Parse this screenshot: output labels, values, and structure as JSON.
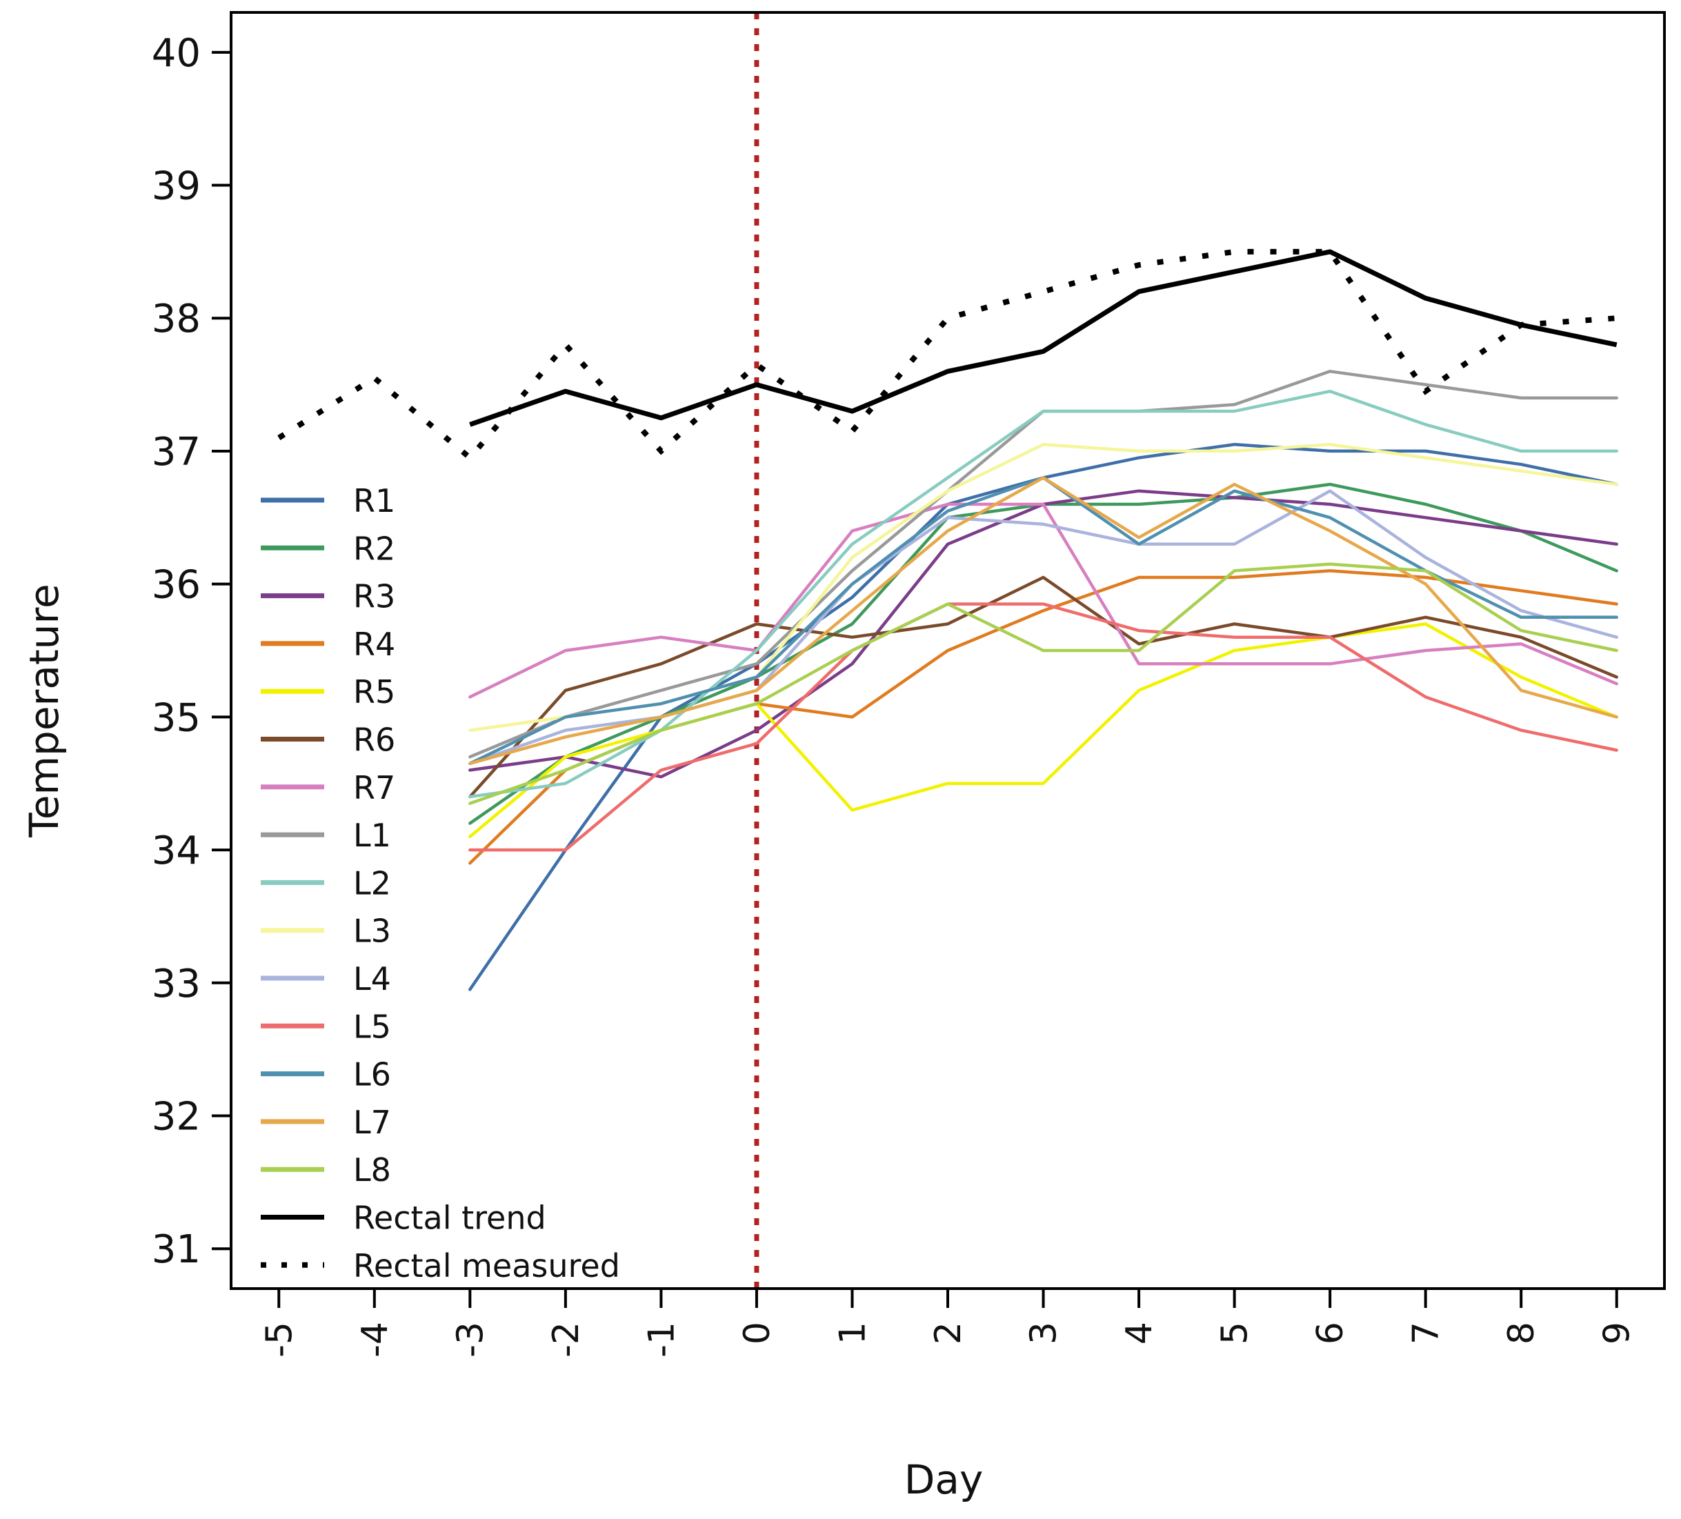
{
  "chart_data": {
    "type": "line",
    "title": "",
    "xlabel": "Day",
    "ylabel": "Temperature",
    "xlim": [
      -5.5,
      9.5
    ],
    "ylim": [
      30.7,
      40.3
    ],
    "x_ticks": [
      -5,
      -4,
      -3,
      -2,
      -1,
      0,
      1,
      2,
      3,
      4,
      5,
      6,
      7,
      8,
      9
    ],
    "x_tick_labels": [
      "-5",
      "-4",
      "-3",
      "-2",
      "-1",
      "0",
      "1",
      "2",
      "3",
      "4",
      "5",
      "6",
      "7",
      "8",
      "9"
    ],
    "y_ticks": [
      31,
      32,
      33,
      34,
      35,
      36,
      37,
      38,
      39,
      40
    ],
    "y_tick_labels": [
      "31",
      "32",
      "33",
      "34",
      "35",
      "36",
      "37",
      "38",
      "39",
      "40"
    ],
    "reference_line": {
      "x": 0,
      "color": "#b22222",
      "style": "dotted"
    },
    "legend_position": "left",
    "x": [
      -3,
      -2,
      -1,
      0,
      1,
      2,
      3,
      4,
      5,
      6,
      7,
      8,
      9
    ],
    "series": [
      {
        "name": "R1",
        "color": "#3f6fa8",
        "values": [
          32.95,
          34.0,
          35.0,
          35.4,
          35.9,
          36.6,
          36.8,
          36.95,
          37.05,
          37.0,
          37.0,
          36.9,
          36.75
        ]
      },
      {
        "name": "R2",
        "color": "#3e9a5c",
        "values": [
          34.2,
          34.7,
          35.0,
          35.3,
          35.7,
          36.5,
          36.6,
          36.6,
          36.65,
          36.75,
          36.6,
          36.4,
          36.1
        ]
      },
      {
        "name": "R3",
        "color": "#7b3c8a",
        "values": [
          34.6,
          34.7,
          34.55,
          34.9,
          35.4,
          36.3,
          36.6,
          36.7,
          36.65,
          36.6,
          36.5,
          36.4,
          36.3
        ]
      },
      {
        "name": "R4",
        "color": "#e07b20",
        "values": [
          33.9,
          34.6,
          34.9,
          35.1,
          35.0,
          35.5,
          35.8,
          36.05,
          36.05,
          36.1,
          36.05,
          35.95,
          35.85
        ]
      },
      {
        "name": "R5",
        "color": "#f2f200",
        "values": [
          34.1,
          34.7,
          34.9,
          35.1,
          34.3,
          34.5,
          34.5,
          35.2,
          35.5,
          35.6,
          35.7,
          35.3,
          35.0
        ]
      },
      {
        "name": "R6",
        "color": "#7a4a2a",
        "values": [
          34.4,
          35.2,
          35.4,
          35.7,
          35.6,
          35.7,
          36.05,
          35.55,
          35.7,
          35.6,
          35.75,
          35.6,
          35.3
        ]
      },
      {
        "name": "R7",
        "color": "#d77fbf",
        "values": [
          35.15,
          35.5,
          35.6,
          35.5,
          36.4,
          36.6,
          36.6,
          35.4,
          35.4,
          35.4,
          35.5,
          35.55,
          35.25
        ]
      },
      {
        "name": "L1",
        "color": "#999999",
        "values": [
          34.7,
          35.0,
          35.2,
          35.4,
          36.1,
          36.7,
          37.3,
          37.3,
          37.35,
          37.6,
          37.5,
          37.4,
          37.4
        ]
      },
      {
        "name": "L2",
        "color": "#88ccc0",
        "values": [
          34.4,
          34.5,
          34.9,
          35.5,
          36.3,
          36.8,
          37.3,
          37.3,
          37.3,
          37.45,
          37.2,
          37.0,
          37.0
        ]
      },
      {
        "name": "L3",
        "color": "#f5f59a",
        "values": [
          34.9,
          35.0,
          35.1,
          35.3,
          36.2,
          36.7,
          37.05,
          37.0,
          37.0,
          37.05,
          36.95,
          36.85,
          36.75
        ]
      },
      {
        "name": "L4",
        "color": "#a9b3dd",
        "values": [
          34.65,
          34.9,
          35.0,
          35.2,
          36.0,
          36.5,
          36.45,
          36.3,
          36.3,
          36.7,
          36.2,
          35.8,
          35.6
        ]
      },
      {
        "name": "L5",
        "color": "#ef6c6c",
        "values": [
          34.0,
          34.0,
          34.6,
          34.8,
          35.5,
          35.85,
          35.85,
          35.65,
          35.6,
          35.6,
          35.15,
          34.9,
          34.75
        ]
      },
      {
        "name": "L6",
        "color": "#4f8fb0",
        "values": [
          34.65,
          35.0,
          35.1,
          35.3,
          36.0,
          36.55,
          36.8,
          36.3,
          36.7,
          36.5,
          36.1,
          35.75,
          35.75
        ]
      },
      {
        "name": "L7",
        "color": "#e6a84a",
        "values": [
          34.65,
          34.85,
          35.0,
          35.2,
          35.8,
          36.4,
          36.8,
          36.35,
          36.75,
          36.4,
          36.0,
          35.2,
          35.0
        ]
      },
      {
        "name": "L8",
        "color": "#a9cf50",
        "values": [
          34.35,
          34.6,
          34.9,
          35.1,
          35.5,
          35.85,
          35.5,
          35.5,
          36.1,
          36.15,
          36.1,
          35.65,
          35.5
        ]
      }
    ],
    "rectal_trend": {
      "name": "Rectal trend",
      "color": "#000000",
      "x": [
        -3,
        -2,
        -1,
        0,
        1,
        2,
        3,
        4,
        5,
        6,
        7,
        8,
        9
      ],
      "values": [
        37.2,
        37.45,
        37.25,
        37.5,
        37.3,
        37.6,
        37.75,
        38.2,
        38.35,
        38.5,
        38.15,
        37.95,
        37.8
      ]
    },
    "rectal_measured": {
      "name": "Rectal measured",
      "color": "#000000",
      "x": [
        -5,
        -4,
        -3,
        -2,
        -1,
        0,
        1,
        2,
        3,
        4,
        5,
        6,
        7,
        8,
        9
      ],
      "values": [
        37.1,
        37.55,
        36.95,
        37.8,
        37.0,
        37.65,
        37.15,
        38.0,
        38.2,
        38.4,
        38.5,
        38.5,
        37.45,
        37.95,
        38.0
      ]
    }
  }
}
